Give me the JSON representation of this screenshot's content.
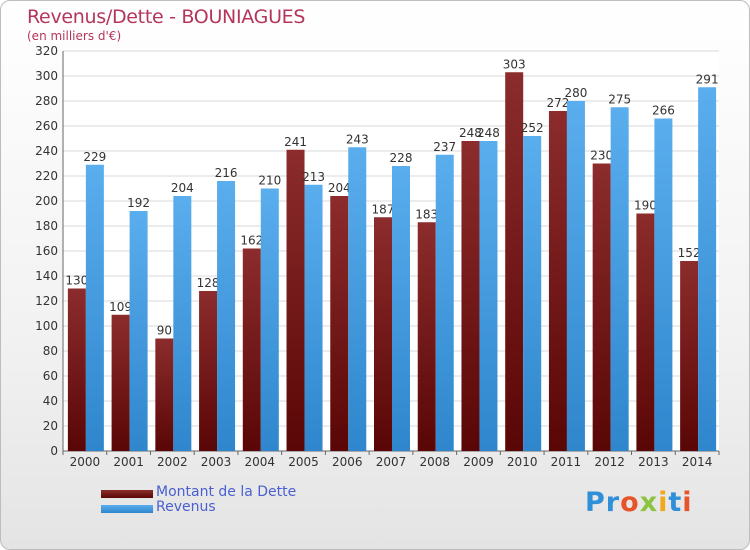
{
  "title": "Revenus/Dette - BOUNIAGUES",
  "subtitle": "(en milliers d'€)",
  "logo": "Proxiti",
  "logo_colors": [
    "#2f8fd8",
    "#2f8fd8",
    "#e8542a",
    "#8bc43f",
    "#f2a81c",
    "#2f8fd8",
    "#e8542a"
  ],
  "colors": {
    "dette": "#7a1f1f",
    "revenus": "#4fa6e8",
    "grid": "#d8d8d8",
    "text": "#333333",
    "title": "#b5355c",
    "legend_text": "#4a5fd0"
  },
  "chart_data": {
    "type": "bar",
    "title": "Revenus/Dette - BOUNIAGUES",
    "ylabel": "(en milliers d'€)",
    "xlabel": "",
    "categories": [
      "2000",
      "2001",
      "2002",
      "2003",
      "2004",
      "2005",
      "2006",
      "2007",
      "2008",
      "2009",
      "2010",
      "2011",
      "2012",
      "2013",
      "2014"
    ],
    "series": [
      {
        "name": "Montant de la Dette",
        "values": [
          130,
          109,
          90,
          128,
          162,
          241,
          204,
          187,
          183,
          248,
          303,
          272,
          230,
          190,
          152
        ]
      },
      {
        "name": "Revenus",
        "values": [
          229,
          192,
          204,
          216,
          210,
          213,
          243,
          228,
          237,
          248,
          252,
          280,
          275,
          266,
          291
        ]
      }
    ],
    "ylim": [
      0,
      320
    ],
    "yticks": [
      0,
      20,
      40,
      60,
      80,
      100,
      120,
      140,
      160,
      180,
      200,
      220,
      240,
      260,
      280,
      300,
      320
    ],
    "grid": true,
    "legend": "bottom-left"
  }
}
